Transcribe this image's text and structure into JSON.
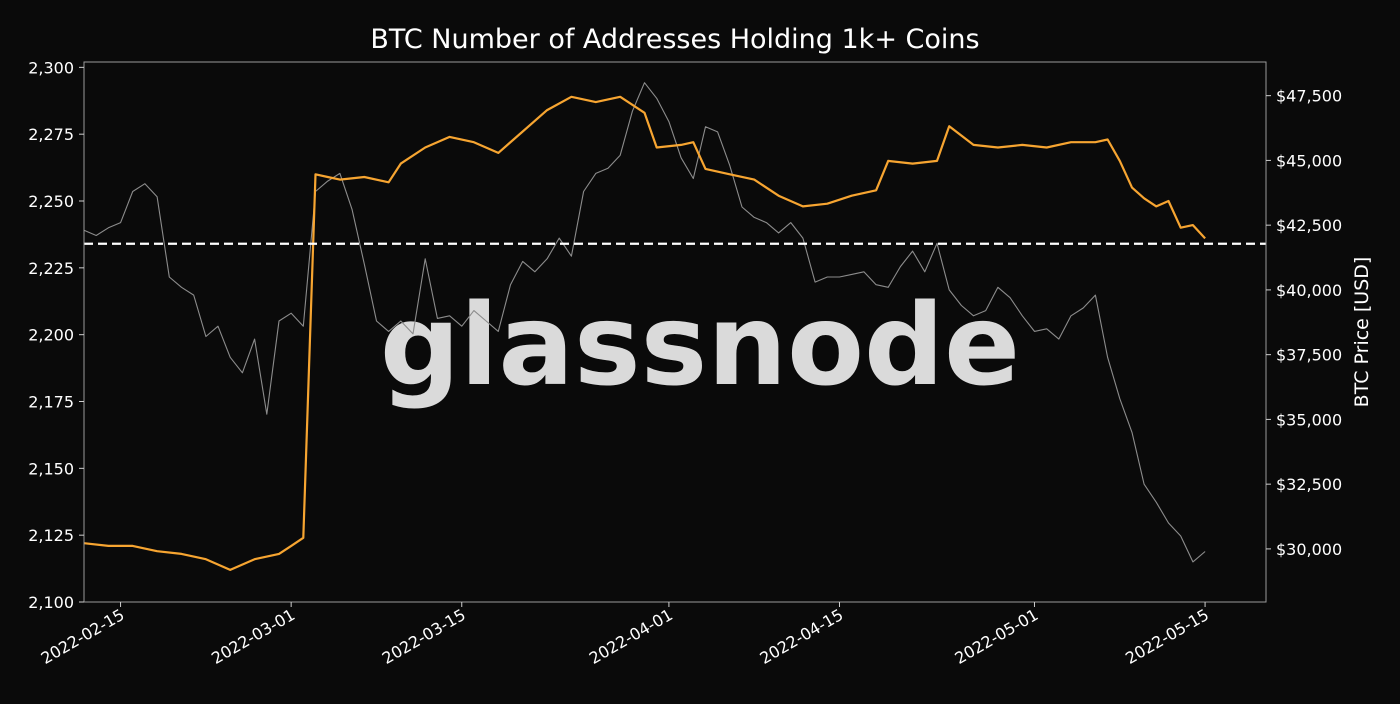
{
  "chart_data": {
    "type": "line",
    "title": "BTC Number of Addresses Holding 1k+ Coins",
    "y_left_label": "",
    "y_right_label": "BTC Price [USD]",
    "watermark": "glassnode",
    "x_range": [
      "2022-02-12",
      "2022-05-20"
    ],
    "x_ticks": [
      "2022-02-15",
      "2022-03-01",
      "2022-03-15",
      "2022-04-01",
      "2022-04-15",
      "2022-05-01",
      "2022-05-15"
    ],
    "y_left_range": [
      2100,
      2302
    ],
    "y_left_ticks": [
      2100,
      2125,
      2150,
      2175,
      2200,
      2225,
      2250,
      2275,
      2300
    ],
    "y_left_tick_labels": [
      "2,100",
      "2,125",
      "2,150",
      "2,175",
      "2,200",
      "2,225",
      "2,250",
      "2,275",
      "2,300"
    ],
    "y_right_range": [
      27950,
      48800
    ],
    "y_right_ticks": [
      30000,
      32500,
      35000,
      37500,
      40000,
      42500,
      45000,
      47500
    ],
    "y_right_tick_labels": [
      "$30,000",
      "$32,500",
      "$35,000",
      "$37,500",
      "$40,000",
      "$42,500",
      "$45,000",
      "$47,500"
    ],
    "reference_line": {
      "axis": "left",
      "value": 2234,
      "style": "dashed",
      "color": "#ffffff"
    },
    "grid": false,
    "colors": {
      "background": "#0a0a0a",
      "addresses": "#f7a531",
      "price": "#8c8c8c",
      "watermark": "#5e5e5e"
    },
    "series": [
      {
        "axis": "left",
        "color": "#f7a531",
        "points": [
          [
            "2022-02-12",
            2122
          ],
          [
            "2022-02-14",
            2121
          ],
          [
            "2022-02-16",
            2121
          ],
          [
            "2022-02-18",
            2119
          ],
          [
            "2022-02-20",
            2118
          ],
          [
            "2022-02-22",
            2116
          ],
          [
            "2022-02-24",
            2112
          ],
          [
            "2022-02-26",
            2116
          ],
          [
            "2022-02-28",
            2118
          ],
          [
            "2022-03-01",
            2121
          ],
          [
            "2022-03-02",
            2124
          ],
          [
            "2022-03-03",
            2260
          ],
          [
            "2022-03-04",
            2259
          ],
          [
            "2022-03-05",
            2258
          ],
          [
            "2022-03-07",
            2259
          ],
          [
            "2022-03-09",
            2257
          ],
          [
            "2022-03-10",
            2264
          ],
          [
            "2022-03-12",
            2270
          ],
          [
            "2022-03-14",
            2274
          ],
          [
            "2022-03-16",
            2272
          ],
          [
            "2022-03-18",
            2268
          ],
          [
            "2022-03-20",
            2276
          ],
          [
            "2022-03-22",
            2284
          ],
          [
            "2022-03-24",
            2289
          ],
          [
            "2022-03-26",
            2287
          ],
          [
            "2022-03-28",
            2289
          ],
          [
            "2022-03-30",
            2283
          ],
          [
            "2022-03-31",
            2270
          ],
          [
            "2022-04-02",
            2271
          ],
          [
            "2022-04-03",
            2272
          ],
          [
            "2022-04-04",
            2262
          ],
          [
            "2022-04-06",
            2260
          ],
          [
            "2022-04-08",
            2258
          ],
          [
            "2022-04-10",
            2252
          ],
          [
            "2022-04-12",
            2248
          ],
          [
            "2022-04-14",
            2249
          ],
          [
            "2022-04-16",
            2252
          ],
          [
            "2022-04-18",
            2254
          ],
          [
            "2022-04-19",
            2265
          ],
          [
            "2022-04-21",
            2264
          ],
          [
            "2022-04-23",
            2265
          ],
          [
            "2022-04-24",
            2278
          ],
          [
            "2022-04-26",
            2271
          ],
          [
            "2022-04-28",
            2270
          ],
          [
            "2022-04-30",
            2271
          ],
          [
            "2022-05-02",
            2270
          ],
          [
            "2022-05-04",
            2272
          ],
          [
            "2022-05-06",
            2272
          ],
          [
            "2022-05-07",
            2273
          ],
          [
            "2022-05-08",
            2265
          ],
          [
            "2022-05-09",
            2255
          ],
          [
            "2022-05-10",
            2251
          ],
          [
            "2022-05-11",
            2248
          ],
          [
            "2022-05-12",
            2250
          ],
          [
            "2022-05-13",
            2240
          ],
          [
            "2022-05-14",
            2241
          ],
          [
            "2022-05-15",
            2236
          ]
        ]
      },
      {
        "axis": "right",
        "color": "#8c8c8c",
        "points": [
          [
            "2022-02-12",
            42300
          ],
          [
            "2022-02-13",
            42100
          ],
          [
            "2022-02-14",
            42400
          ],
          [
            "2022-02-15",
            42600
          ],
          [
            "2022-02-16",
            43800
          ],
          [
            "2022-02-17",
            44100
          ],
          [
            "2022-02-18",
            43600
          ],
          [
            "2022-02-19",
            40500
          ],
          [
            "2022-02-20",
            40100
          ],
          [
            "2022-02-21",
            39800
          ],
          [
            "2022-02-22",
            38200
          ],
          [
            "2022-02-23",
            38600
          ],
          [
            "2022-02-24",
            37400
          ],
          [
            "2022-02-25",
            36800
          ],
          [
            "2022-02-26",
            38100
          ],
          [
            "2022-02-27",
            35200
          ],
          [
            "2022-02-28",
            38800
          ],
          [
            "2022-03-01",
            39100
          ],
          [
            "2022-03-02",
            38600
          ],
          [
            "2022-03-03",
            43800
          ],
          [
            "2022-03-04",
            44200
          ],
          [
            "2022-03-05",
            44500
          ],
          [
            "2022-03-06",
            43100
          ],
          [
            "2022-03-07",
            41000
          ],
          [
            "2022-03-08",
            38800
          ],
          [
            "2022-03-09",
            38400
          ],
          [
            "2022-03-10",
            38800
          ],
          [
            "2022-03-11",
            38300
          ],
          [
            "2022-03-12",
            41200
          ],
          [
            "2022-03-13",
            38900
          ],
          [
            "2022-03-14",
            39000
          ],
          [
            "2022-03-15",
            38600
          ],
          [
            "2022-03-16",
            39200
          ],
          [
            "2022-03-17",
            38800
          ],
          [
            "2022-03-18",
            38400
          ],
          [
            "2022-03-19",
            40200
          ],
          [
            "2022-03-20",
            41100
          ],
          [
            "2022-03-21",
            40700
          ],
          [
            "2022-03-22",
            41200
          ],
          [
            "2022-03-23",
            42000
          ],
          [
            "2022-03-24",
            41300
          ],
          [
            "2022-03-25",
            43800
          ],
          [
            "2022-03-26",
            44500
          ],
          [
            "2022-03-27",
            44700
          ],
          [
            "2022-03-28",
            45200
          ],
          [
            "2022-03-29",
            46900
          ],
          [
            "2022-03-30",
            48000
          ],
          [
            "2022-03-31",
            47400
          ],
          [
            "2022-04-01",
            46500
          ],
          [
            "2022-04-02",
            45100
          ],
          [
            "2022-04-03",
            44300
          ],
          [
            "2022-04-04",
            46300
          ],
          [
            "2022-04-05",
            46100
          ],
          [
            "2022-04-06",
            44800
          ],
          [
            "2022-04-07",
            43200
          ],
          [
            "2022-04-08",
            42800
          ],
          [
            "2022-04-09",
            42600
          ],
          [
            "2022-04-10",
            42200
          ],
          [
            "2022-04-11",
            42600
          ],
          [
            "2022-04-12",
            42000
          ],
          [
            "2022-04-13",
            40300
          ],
          [
            "2022-04-14",
            40500
          ],
          [
            "2022-04-15",
            40500
          ],
          [
            "2022-04-16",
            40600
          ],
          [
            "2022-04-17",
            40700
          ],
          [
            "2022-04-18",
            40200
          ],
          [
            "2022-04-19",
            40100
          ],
          [
            "2022-04-20",
            40900
          ],
          [
            "2022-04-21",
            41500
          ],
          [
            "2022-04-22",
            40700
          ],
          [
            "2022-04-23",
            41800
          ],
          [
            "2022-04-24",
            40000
          ],
          [
            "2022-04-25",
            39400
          ],
          [
            "2022-04-26",
            39000
          ],
          [
            "2022-04-27",
            39200
          ],
          [
            "2022-04-28",
            40100
          ],
          [
            "2022-04-29",
            39700
          ],
          [
            "2022-04-30",
            39000
          ],
          [
            "2022-05-01",
            38400
          ],
          [
            "2022-05-02",
            38500
          ],
          [
            "2022-05-03",
            38100
          ],
          [
            "2022-05-04",
            39000
          ],
          [
            "2022-05-05",
            39300
          ],
          [
            "2022-05-06",
            39800
          ],
          [
            "2022-05-07",
            37400
          ],
          [
            "2022-05-08",
            35800
          ],
          [
            "2022-05-09",
            34500
          ],
          [
            "2022-05-10",
            32500
          ],
          [
            "2022-05-11",
            31800
          ],
          [
            "2022-05-12",
            31000
          ],
          [
            "2022-05-13",
            30500
          ],
          [
            "2022-05-14",
            29500
          ],
          [
            "2022-05-15",
            29900
          ]
        ]
      }
    ]
  }
}
